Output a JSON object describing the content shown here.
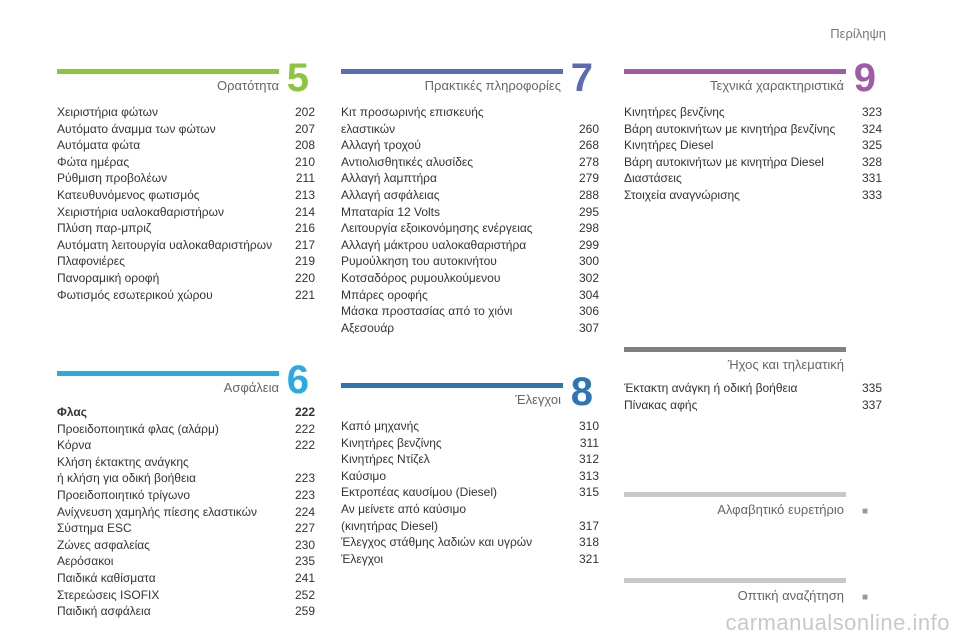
{
  "header": {
    "title": "Περίληψη"
  },
  "sections": {
    "s5": {
      "number": "5",
      "title": "Ορατότητα",
      "color": "#8cc63f",
      "entries": [
        {
          "label": "Χειριστήρια φώτων",
          "page": "202"
        },
        {
          "label": "Αυτόματο άναμμα των φώτων",
          "page": "207"
        },
        {
          "label": "Αυτόματα φώτα",
          "page": "208"
        },
        {
          "label": "Φώτα ημέρας",
          "page": "210"
        },
        {
          "label": "Ρύθμιση προβολέων",
          "page": "211"
        },
        {
          "label": "Κατευθυνόμενος φωτισμός",
          "page": "213"
        },
        {
          "label": "Χειριστήρια υαλοκαθαριστήρων",
          "page": "214"
        },
        {
          "label": "Πλύση παρ-μπριζ",
          "page": "216"
        },
        {
          "label": "Αυτόματη λειτουργία υαλοκαθαριστήρων",
          "page": "217"
        },
        {
          "label": "Πλαφονιέρες",
          "page": "219"
        },
        {
          "label": "Πανοραμική οροφή",
          "page": "220"
        },
        {
          "label": "Φωτισμός εσωτερικού χώρου",
          "page": "221"
        }
      ]
    },
    "s6": {
      "number": "6",
      "title": "Ασφάλεια",
      "color": "#29abe2",
      "entries": [
        {
          "label": "Φλας",
          "page": "222",
          "bold": true
        },
        {
          "label": "Προειδοποιητικά φλας (αλάρμ)",
          "page": "222"
        },
        {
          "label": "Κόρνα",
          "page": "222"
        },
        {
          "label": "Κλήση έκτακτης ανάγκης\nή κλήση για οδική βοήθεια",
          "page": "223"
        },
        {
          "label": "Προειδοποιητικό τρίγωνο",
          "page": "223"
        },
        {
          "label": "Ανίχνευση χαμηλής πίεσης ελαστικών",
          "page": "224"
        },
        {
          "label": "Σύστημα ESC",
          "page": "227"
        },
        {
          "label": "Ζώνες ασφαλείας",
          "page": "230"
        },
        {
          "label": "Αερόσακοι",
          "page": "235"
        },
        {
          "label": "Παιδικά καθίσματα",
          "page": "241"
        },
        {
          "label": "Στερεώσεις ISOFIX",
          "page": "252"
        },
        {
          "label": "Παιδική ασφάλεια",
          "page": "259"
        }
      ]
    },
    "s7": {
      "number": "7",
      "title": "Πρακτικές πληροφορίες",
      "color": "#5b6bb5",
      "entries": [
        {
          "label": "Κιτ προσωρινής επισκευής\nελαστικών",
          "page": "260"
        },
        {
          "label": "Αλλαγή τροχού",
          "page": "268"
        },
        {
          "label": "Αντιολισθητικές αλυσίδες",
          "page": "278"
        },
        {
          "label": "Αλλαγή λαμπτήρα",
          "page": "279"
        },
        {
          "label": "Αλλαγή ασφάλειας",
          "page": "288"
        },
        {
          "label": "Μπαταρία 12 Volts",
          "page": "295"
        },
        {
          "label": "Λειτουργία εξοικονόμησης ενέργειας",
          "page": "298"
        },
        {
          "label": "Αλλαγή μάκτρου υαλοκαθαριστήρα",
          "page": "299"
        },
        {
          "label": "Ρυμούλκηση του αυτοκινήτου",
          "page": "300"
        },
        {
          "label": "Κοτσαδόρος ρυμουλκούμενου",
          "page": "302"
        },
        {
          "label": "Μπάρες οροφής",
          "page": "304"
        },
        {
          "label": "Μάσκα προστασίας από το χιόνι",
          "page": "306"
        },
        {
          "label": "Αξεσουάρ",
          "page": "307"
        }
      ]
    },
    "s8": {
      "number": "8",
      "title": "Έλεγχοι",
      "color": "#2e75b6",
      "entries": [
        {
          "label": "Καπό μηχανής",
          "page": "310"
        },
        {
          "label": "Κινητήρες βενζίνης",
          "page": "311"
        },
        {
          "label": "Κινητήρες Ντίζελ",
          "page": "312"
        },
        {
          "label": "Καύσιμο",
          "page": "313"
        },
        {
          "label": "Εκτροπέας καυσίμου (Diesel)",
          "page": "315"
        },
        {
          "label": "Αν μείνετε από καύσιμο\n(κινητήρας Diesel)",
          "page": "317"
        },
        {
          "label": "Έλεγχος στάθμης λαδιών και υγρών",
          "page": "318"
        },
        {
          "label": "Έλεγχοι",
          "page": "321"
        }
      ]
    },
    "s9": {
      "number": "9",
      "title": "Τεχνικά χαρακτηριστικά",
      "color": "#a05aa8",
      "entries": [
        {
          "label": "Κινητήρες βενζίνης",
          "page": "323"
        },
        {
          "label": "Βάρη αυτοκινήτων με κινητήρα βενζίνης",
          "page": "324"
        },
        {
          "label": "Κινητήρες Diesel",
          "page": "325"
        },
        {
          "label": "Βάρη αυτοκινήτων με κινητήρα Diesel",
          "page": "328"
        },
        {
          "label": "Διαστάσεις",
          "page": "331"
        },
        {
          "label": "Στοιχεία αναγνώρισης",
          "page": "333"
        }
      ]
    },
    "audio": {
      "title": "Ήχος και τηλεματική",
      "color": "#808080",
      "entries": [
        {
          "label": "Έκτακτη ανάγκη ή οδική βοήθεια",
          "page": "335"
        },
        {
          "label": "Πίνακας αφής",
          "page": "337"
        }
      ]
    },
    "alpha": {
      "title": "Αλφαβητικό ευρετήριο",
      "color": "#c8c8c8",
      "mark": "■"
    },
    "visual": {
      "title": "Οπτική αναζήτηση",
      "color": "#c8c8c8",
      "mark": "■"
    }
  },
  "watermark": "carmanualsonline.info"
}
